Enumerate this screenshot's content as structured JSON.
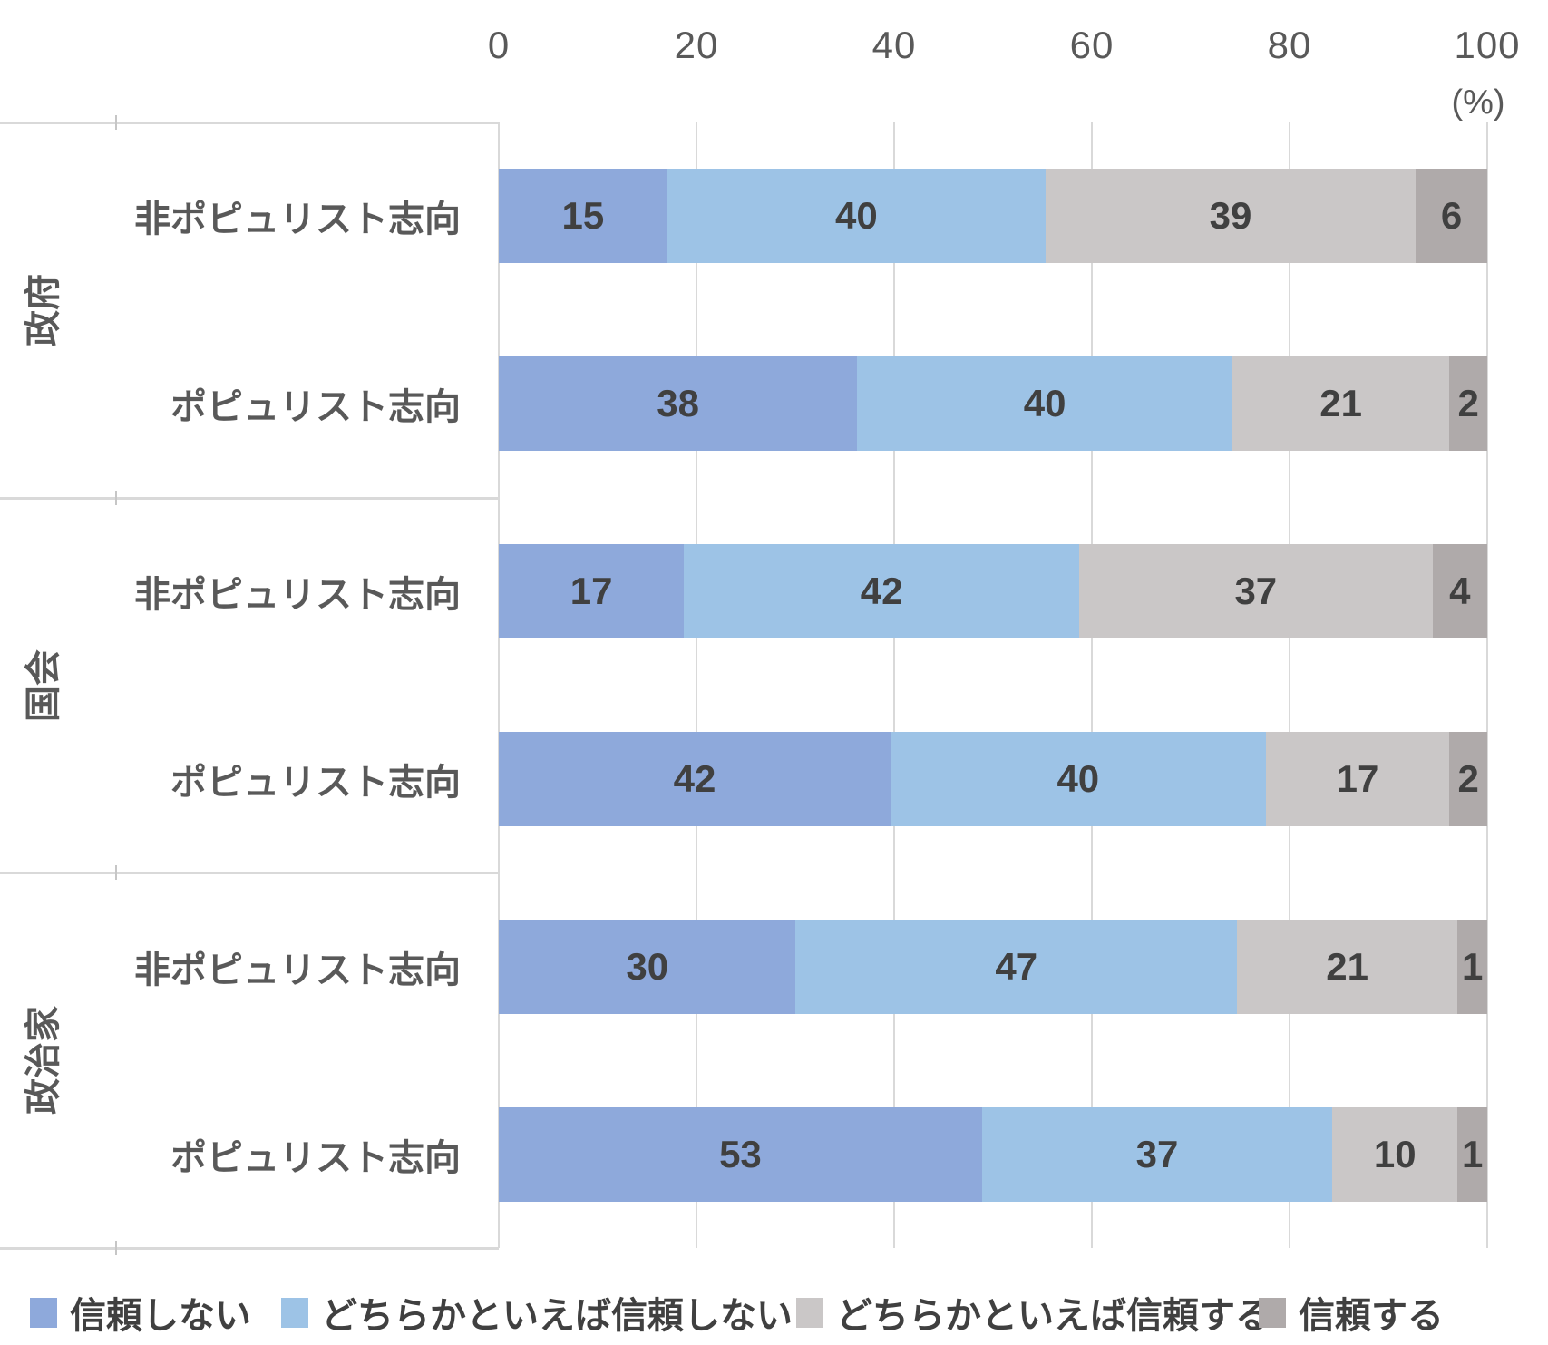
{
  "chart_data": {
    "type": "bar",
    "orientation": "horizontal",
    "stacked": true,
    "normalized_percent": true,
    "title": "",
    "unit_label": "(%)",
    "x_ticks": [
      0,
      20,
      40,
      60,
      80,
      100
    ],
    "xlim": [
      0,
      100
    ],
    "grid": "vertical-lines",
    "legend_position": "bottom",
    "series": [
      {
        "name": "信頼しない",
        "color": "#8ea9db"
      },
      {
        "name": "どちらかといえば信頼しない",
        "color": "#9dc3e6"
      },
      {
        "name": "どちらかといえば信頼する",
        "color": "#cac7c7"
      },
      {
        "name": "信頼する",
        "color": "#afaaaa"
      }
    ],
    "groups": [
      {
        "label": "政府",
        "rows": [
          {
            "label": "非ポピュリスト志向",
            "values": [
              15,
              40,
              39,
              6
            ]
          },
          {
            "label": "ポピュリスト志向",
            "values": [
              38,
              40,
              21,
              2
            ]
          }
        ]
      },
      {
        "label": "国会",
        "rows": [
          {
            "label": "非ポピュリスト志向",
            "values": [
              17,
              42,
              37,
              4
            ]
          },
          {
            "label": "ポピュリスト志向",
            "values": [
              42,
              40,
              17,
              2
            ]
          }
        ]
      },
      {
        "label": "政治家",
        "rows": [
          {
            "label": "非ポピュリスト志向",
            "values": [
              30,
              47,
              21,
              1
            ]
          },
          {
            "label": "ポピュリスト志向",
            "values": [
              53,
              37,
              10,
              1
            ]
          }
        ]
      }
    ],
    "colors": {
      "axis_text": "#595959",
      "value_text": "#404040",
      "legend_text": "#404040",
      "gridline": "#d9d9d9",
      "border": "#d9d9d9"
    }
  }
}
